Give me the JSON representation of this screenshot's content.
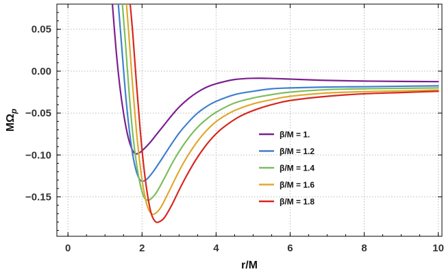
{
  "chart_data": {
    "type": "line",
    "title": "",
    "xlabel": "r/M",
    "ylabel": "MΩ",
    "ylabel_subscript": "p",
    "xlim": [
      -0.3,
      10.1
    ],
    "ylim": [
      -0.197,
      0.08
    ],
    "xticks": [
      0,
      2,
      4,
      6,
      8,
      10
    ],
    "xtick_labels": [
      "0",
      "2",
      "4",
      "6",
      "8",
      "10"
    ],
    "yticks": [
      0.05,
      0.0,
      -0.05,
      -0.1,
      -0.15
    ],
    "ytick_labels": [
      "0.05",
      "0.00",
      "−0.05",
      "−0.10",
      "−0.15"
    ],
    "grid": true,
    "legend_position": "center-right",
    "series": [
      {
        "name": "β/M = 1.",
        "color": "#7b1f8e",
        "x": [
          1.2,
          1.3,
          1.4,
          1.5,
          1.6,
          1.7,
          1.8,
          1.9,
          2.0,
          2.2,
          2.4,
          2.6,
          2.8,
          3.0,
          3.25,
          3.5,
          3.75,
          4.0,
          4.5,
          5.0,
          5.5,
          6.0,
          6.5,
          7.0,
          8.0,
          9.0,
          10.0
        ],
        "y": [
          0.08,
          0.025,
          -0.018,
          -0.05,
          -0.074,
          -0.09,
          -0.098,
          -0.098,
          -0.095,
          -0.086,
          -0.075,
          -0.064,
          -0.053,
          -0.043,
          -0.033,
          -0.025,
          -0.019,
          -0.015,
          -0.01,
          -0.0085,
          -0.0087,
          -0.0095,
          -0.0103,
          -0.011,
          -0.0118,
          -0.0122,
          -0.0125
        ]
      },
      {
        "name": "β/M = 1.2",
        "color": "#3f7fcf",
        "x": [
          1.36,
          1.45,
          1.55,
          1.65,
          1.75,
          1.85,
          1.95,
          2.05,
          2.15,
          2.3,
          2.5,
          2.75,
          3.0,
          3.25,
          3.5,
          3.75,
          4.0,
          4.5,
          5.0,
          5.5,
          6.0,
          7.0,
          8.0,
          9.0,
          10.0
        ],
        "y": [
          0.08,
          0.03,
          -0.025,
          -0.068,
          -0.1,
          -0.12,
          -0.13,
          -0.131,
          -0.128,
          -0.12,
          -0.107,
          -0.09,
          -0.074,
          -0.061,
          -0.05,
          -0.042,
          -0.036,
          -0.028,
          -0.024,
          -0.021,
          -0.02,
          -0.019,
          -0.0185,
          -0.018,
          -0.0175
        ]
      },
      {
        "name": "β/M = 1.4",
        "color": "#7dbd5c",
        "x": [
          1.47,
          1.55,
          1.65,
          1.75,
          1.85,
          1.95,
          2.05,
          2.15,
          2.25,
          2.4,
          2.6,
          2.8,
          3.0,
          3.25,
          3.5,
          3.75,
          4.0,
          4.5,
          5.0,
          5.5,
          6.0,
          7.0,
          8.0,
          9.0,
          10.0
        ],
        "y": [
          0.08,
          0.035,
          -0.025,
          -0.075,
          -0.11,
          -0.135,
          -0.15,
          -0.154,
          -0.152,
          -0.144,
          -0.128,
          -0.111,
          -0.096,
          -0.08,
          -0.067,
          -0.057,
          -0.049,
          -0.038,
          -0.032,
          -0.028,
          -0.025,
          -0.022,
          -0.021,
          -0.0205,
          -0.02
        ]
      },
      {
        "name": "β/M = 1.6",
        "color": "#e0a82e",
        "x": [
          1.58,
          1.65,
          1.75,
          1.85,
          1.95,
          2.05,
          2.15,
          2.25,
          2.35,
          2.5,
          2.7,
          2.9,
          3.1,
          3.35,
          3.6,
          3.85,
          4.1,
          4.5,
          5.0,
          5.5,
          6.0,
          7.0,
          8.0,
          9.0,
          10.0
        ],
        "y": [
          0.08,
          0.04,
          -0.02,
          -0.072,
          -0.113,
          -0.143,
          -0.162,
          -0.17,
          -0.17,
          -0.163,
          -0.146,
          -0.128,
          -0.111,
          -0.093,
          -0.078,
          -0.066,
          -0.057,
          -0.047,
          -0.039,
          -0.034,
          -0.03,
          -0.026,
          -0.0245,
          -0.0235,
          -0.0225
        ]
      },
      {
        "name": "β/M = 1.8",
        "color": "#d7261e",
        "x": [
          1.68,
          1.75,
          1.85,
          1.95,
          2.05,
          2.15,
          2.25,
          2.35,
          2.45,
          2.6,
          2.8,
          3.0,
          3.2,
          3.45,
          3.7,
          3.95,
          4.2,
          4.6,
          5.0,
          5.5,
          6.0,
          7.0,
          8.0,
          9.0,
          10.0
        ],
        "y": [
          0.08,
          0.045,
          -0.015,
          -0.07,
          -0.115,
          -0.148,
          -0.17,
          -0.179,
          -0.18,
          -0.175,
          -0.16,
          -0.142,
          -0.125,
          -0.106,
          -0.09,
          -0.077,
          -0.067,
          -0.055,
          -0.047,
          -0.04,
          -0.035,
          -0.03,
          -0.027,
          -0.0255,
          -0.024
        ]
      }
    ]
  }
}
